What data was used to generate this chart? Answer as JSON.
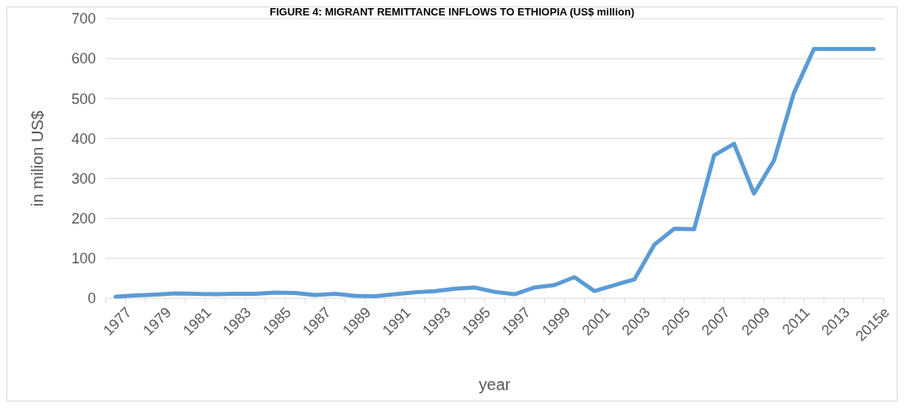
{
  "chart_data": {
    "type": "line",
    "title": "FIGURE 4: MIGRANT REMITTANCE INFLOWS TO ETHIOPIA (US$ million)",
    "xlabel": "year",
    "ylabel": "in milion US$",
    "categories": [
      "1977",
      null,
      "1979",
      null,
      "1981",
      null,
      "1983",
      null,
      "1985",
      null,
      "1987",
      null,
      "1989",
      null,
      "1991",
      null,
      "1993",
      null,
      "1995",
      null,
      "1997",
      null,
      "1999",
      null,
      "2001",
      null,
      "2003",
      null,
      "2005",
      null,
      "2007",
      null,
      "2009",
      null,
      "2011",
      null,
      "2013",
      null,
      "2015e"
    ],
    "series": [
      {
        "color": "#5b9bd5",
        "values": [
          4,
          7,
          9,
          12,
          11,
          10,
          11,
          11,
          14,
          13,
          8,
          11,
          6,
          5,
          10,
          15,
          18,
          24,
          27,
          16,
          10,
          27,
          33,
          53,
          18,
          33,
          47,
          134,
          174,
          173,
          358,
          387,
          262,
          345,
          514,
          624,
          624,
          624,
          624
        ]
      }
    ],
    "ylim": [
      0,
      700
    ],
    "yticks": [
      0,
      100,
      200,
      300,
      400,
      500,
      600,
      700
    ],
    "grid": "y",
    "legend": false,
    "marker": "none",
    "line_style": "solid"
  }
}
